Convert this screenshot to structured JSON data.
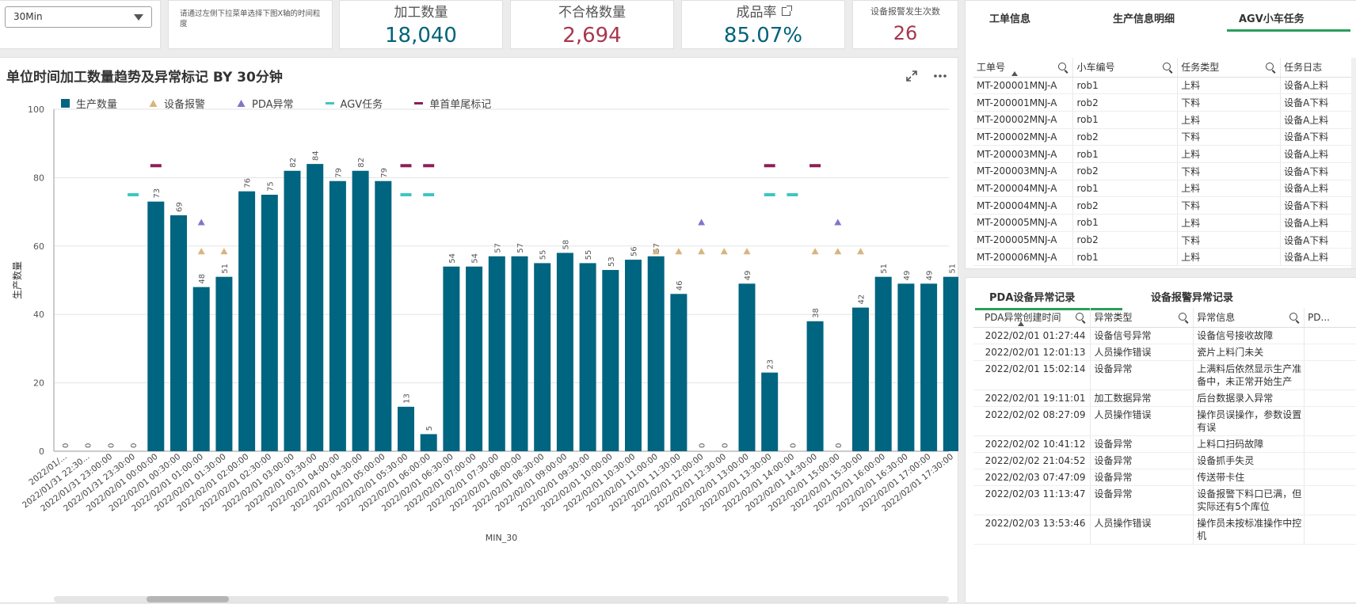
{
  "controls": {
    "granularity_value": "30Min",
    "hint_text": "请通过左侧下拉菜单选择下图X轴的时间粒度"
  },
  "kpis": {
    "processed_label": "加工数量",
    "processed_value": "18,040",
    "defect_label": "不合格数量",
    "defect_value": "2,694",
    "yield_label": "成品率",
    "yield_value": "85.07%",
    "alarm_label": "设备报警发生次数",
    "alarm_value": "26"
  },
  "colors": {
    "teal": "#00637b",
    "red": "#a9364d",
    "bar": "#006580",
    "alarm": "#d8b47f",
    "pda": "#8275c9",
    "agv": "#3fc6c3",
    "mark": "#8c1f56",
    "tab_active": "#2b9e5a"
  },
  "chart": {
    "title": "单位时间加工数量趋势及异常标记 BY 30分钟",
    "expand_icon": "expand-icon",
    "more_icon": "more-icon"
  },
  "chart_data": {
    "type": "bar",
    "title": "单位时间加工数量趋势及异常标记 BY 30分钟",
    "xlabel": "MIN_30",
    "ylabel": "生产数量",
    "ylim": [
      0,
      100
    ],
    "yticks": [
      0,
      20,
      40,
      60,
      80,
      100
    ],
    "grid": true,
    "legend_position": "top-left",
    "legend": [
      "生产数量",
      "设备报警",
      "PDA异常",
      "AGV任务",
      "单首单尾标记"
    ],
    "categories": [
      "2022/01/...",
      "2022/01/31 22:30...",
      "2022/01/31 23:00:00",
      "2022/01/31 23:30:00",
      "2022/02/01 00:00:00",
      "2022/02/01 00:30:00",
      "2022/02/01 01:00:00",
      "2022/02/01 01:30:00",
      "2022/02/01 02:00:00",
      "2022/02/01 02:30:00",
      "2022/02/01 03:00:00",
      "2022/02/01 03:30:00",
      "2022/02/01 04:00:00",
      "2022/02/01 04:30:00",
      "2022/02/01 05:00:00",
      "2022/02/01 05:30:00",
      "2022/02/01 06:00:00",
      "2022/02/01 06:30:00",
      "2022/02/01 07:00:00",
      "2022/02/01 07:30:00",
      "2022/02/01 08:00:00",
      "2022/02/01 08:30:00",
      "2022/02/01 09:00:00",
      "2022/02/01 09:30:00",
      "2022/02/01 10:00:00",
      "2022/02/01 10:30:00",
      "2022/02/01 11:00:00",
      "2022/02/01 11:30:00",
      "2022/02/01 12:00:00",
      "2022/02/01 12:30:00",
      "2022/02/01 13:00:00",
      "2022/02/01 13:30:00",
      "2022/02/01 14:00:00",
      "2022/02/01 14:30:00",
      "2022/02/01 15:00:00",
      "2022/02/01 15:30:00",
      "2022/02/01 16:00:00",
      "2022/02/01 16:30:00",
      "2022/02/01 17:00:00",
      "2022/02/01 17:30:00"
    ],
    "series": [
      {
        "name": "生产数量",
        "values": [
          0,
          0,
          0,
          0,
          73,
          69,
          48,
          51,
          76,
          75,
          82,
          84,
          79,
          82,
          79,
          13,
          5,
          54,
          54,
          57,
          57,
          55,
          58,
          55,
          53,
          56,
          57,
          46,
          0,
          0,
          49,
          23,
          0,
          38,
          0,
          42,
          51,
          49,
          49,
          51
        ]
      },
      {
        "name": "设备报警",
        "indices": [
          6,
          7,
          26,
          27,
          28,
          29,
          30,
          33,
          34,
          35
        ],
        "value": 58.5
      },
      {
        "name": "PDA异常",
        "indices": [
          6,
          28,
          34
        ],
        "value": 67
      },
      {
        "name": "AGV任务",
        "indices": [
          3,
          15,
          16,
          31,
          32
        ],
        "value": 75
      },
      {
        "name": "单首单尾标记",
        "indices": [
          4,
          15,
          16,
          31,
          33
        ],
        "value": 83.5
      }
    ]
  },
  "agv": {
    "tabs": [
      "工单信息",
      "生产信息明细",
      "AGV小车任务"
    ],
    "columns": [
      "工单号",
      "小车编号",
      "任务类型",
      "任务日志"
    ],
    "rows": [
      [
        "MT-200001MNJ-A",
        "rob1",
        "上料",
        "设备A上料"
      ],
      [
        "MT-200001MNJ-A",
        "rob2",
        "下料",
        "设备A下料"
      ],
      [
        "MT-200002MNJ-A",
        "rob1",
        "上料",
        "设备A上料"
      ],
      [
        "MT-200002MNJ-A",
        "rob2",
        "下料",
        "设备A下料"
      ],
      [
        "MT-200003MNJ-A",
        "rob1",
        "上料",
        "设备A上料"
      ],
      [
        "MT-200003MNJ-A",
        "rob2",
        "下料",
        "设备A下料"
      ],
      [
        "MT-200004MNJ-A",
        "rob1",
        "上料",
        "设备A上料"
      ],
      [
        "MT-200004MNJ-A",
        "rob2",
        "下料",
        "设备A下料"
      ],
      [
        "MT-200005MNJ-A",
        "rob1",
        "上料",
        "设备A上料"
      ],
      [
        "MT-200005MNJ-A",
        "rob2",
        "下料",
        "设备A下料"
      ],
      [
        "MT-200006MNJ-A",
        "rob1",
        "上料",
        "设备A上料"
      ]
    ]
  },
  "pda": {
    "tabs": [
      "PDA设备异常记录",
      "设备报警异常记录"
    ],
    "columns": [
      "PDA异常创建时间",
      "异常类型",
      "异常信息",
      "PD..."
    ],
    "rows": [
      [
        "2022/02/01 01:27:44",
        "设备信号异常",
        "设备信号接收故障"
      ],
      [
        "2022/02/01 12:01:13",
        "人员操作错误",
        "瓷片上料门未关"
      ],
      [
        "2022/02/01 15:02:14",
        "设备异常",
        "上满料后依然显示生产准备中，未正常开始生产"
      ],
      [
        "2022/02/01 19:11:01",
        "加工数据异常",
        "后台数据录入异常"
      ],
      [
        "2022/02/02 08:27:09",
        "人员操作错误",
        "操作员误操作，参数设置有误"
      ],
      [
        "2022/02/02 10:41:12",
        "设备异常",
        "上料口扫码故障"
      ],
      [
        "2022/02/02 21:04:52",
        "设备异常",
        "设备抓手失灵"
      ],
      [
        "2022/02/03 07:47:09",
        "设备异常",
        "传送带卡住"
      ],
      [
        "2022/02/03 11:13:47",
        "设备异常",
        "设备报警下料口已满，但实际还有5个库位"
      ],
      [
        "2022/02/03 13:53:46",
        "人员操作错误",
        "操作员未按标准操作中控机"
      ]
    ]
  }
}
